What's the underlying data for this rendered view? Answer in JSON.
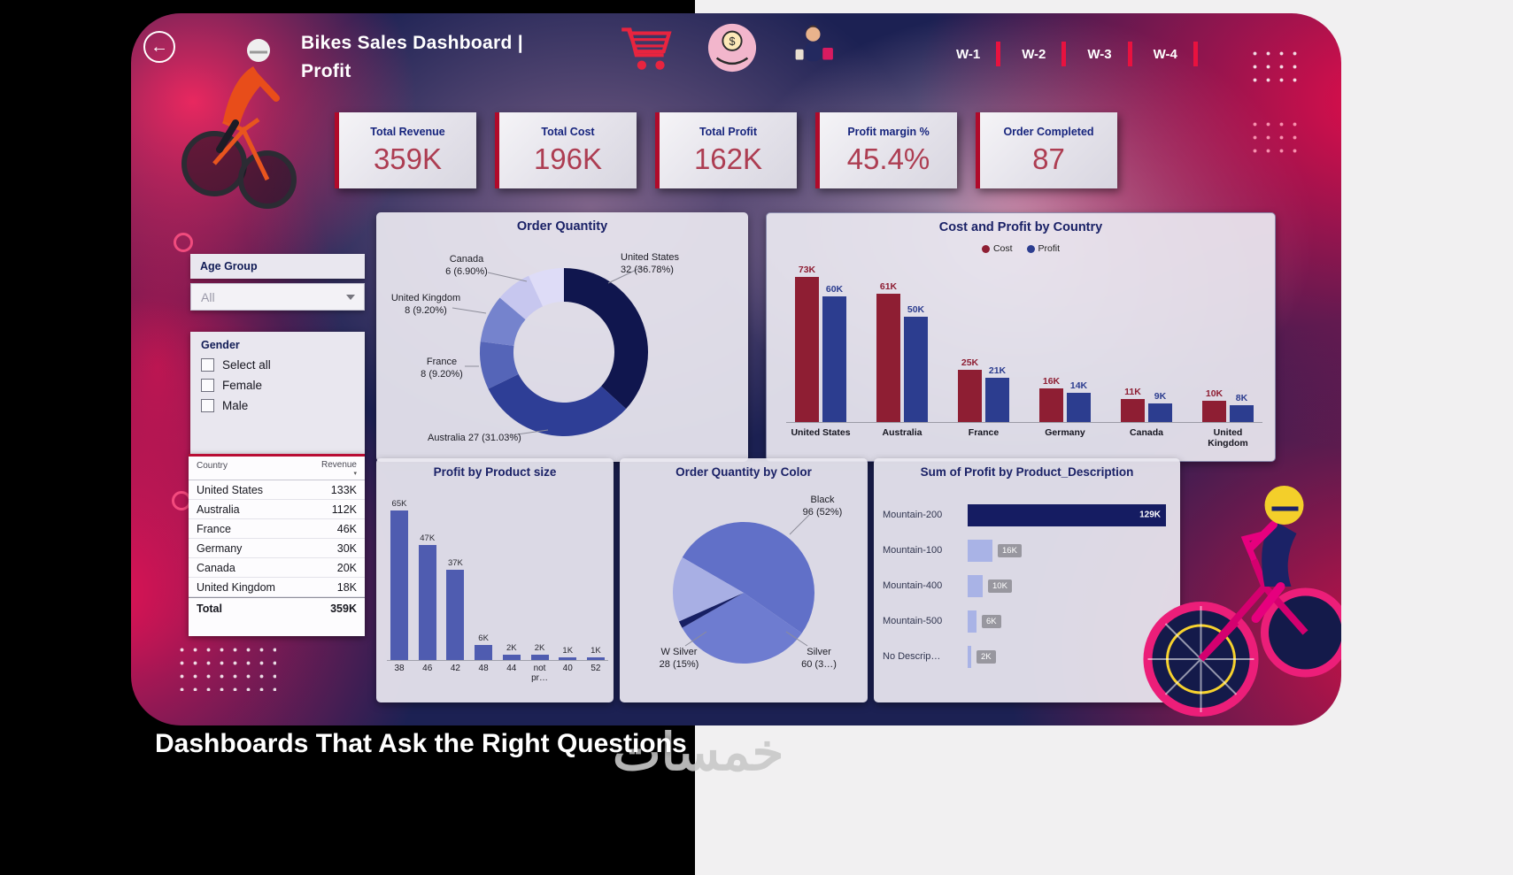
{
  "page": {
    "caption": "Dashboards That Ask the Right Questions",
    "watermark": "خمسات"
  },
  "colors": {
    "accent_red": "#e8123f",
    "navy_background": "#1c2153",
    "kpi_value": "#ad3d52",
    "cost": "#8e1e33",
    "profit": "#2c3d8f"
  },
  "header": {
    "title_line1": "Bikes Sales Dashboard |",
    "title_line2": "Profit",
    "week_tabs": [
      "W-1",
      "W-2",
      "W-3",
      "W-4"
    ],
    "icons": [
      "back-arrow",
      "cyclist",
      "shopping-cart",
      "money-hand",
      "shopper"
    ]
  },
  "kpis": [
    {
      "label": "Total Revenue",
      "value": "359K"
    },
    {
      "label": "Total Cost",
      "value": "196K"
    },
    {
      "label": "Total Profit",
      "value": "162K"
    },
    {
      "label": "Profit margin %",
      "value": "45.4%"
    },
    {
      "label": "Order Completed",
      "value": "87"
    }
  ],
  "filters": {
    "age_group_label": "Age Group",
    "age_group_value": "All",
    "gender_label": "Gender",
    "gender_options": [
      "Select all",
      "Female",
      "Male"
    ]
  },
  "revenue_table": {
    "columns": [
      "Country",
      "Revenue"
    ],
    "rows": [
      {
        "country": "United States",
        "revenue": "133K"
      },
      {
        "country": "Australia",
        "revenue": "112K"
      },
      {
        "country": "France",
        "revenue": "46K"
      },
      {
        "country": "Germany",
        "revenue": "30K"
      },
      {
        "country": "Canada",
        "revenue": "20K"
      },
      {
        "country": "United Kingdom",
        "revenue": "18K"
      }
    ],
    "total_label": "Total",
    "total_value": "359K"
  },
  "chart_data": [
    {
      "id": "order_quantity",
      "type": "pie",
      "variant": "donut",
      "title": "Order Quantity",
      "slices": [
        {
          "label": "United States",
          "value": 32,
          "display": "United States\n32 (36.78%)",
          "color": "#10164e"
        },
        {
          "label": "Australia",
          "value": 27,
          "display": "Australia 27 (31.03%)",
          "color": "#2e3e96"
        },
        {
          "label": "France",
          "value": 8,
          "display": "France\n8 (9.20%)",
          "color": "#5565b8"
        },
        {
          "label": "United Kingdom",
          "value": 8,
          "display": "United Kingdom\n8 (9.20%)",
          "color": "#7583cd"
        },
        {
          "label": "Canada",
          "value": 6,
          "display": "Canada\n6 (6.90%)",
          "color": "#c7c7ef"
        },
        {
          "label": "",
          "value": 6,
          "display": "",
          "color": "#dedcf7"
        }
      ]
    },
    {
      "id": "cost_and_profit_by_country",
      "type": "bar",
      "title": "Cost and Profit by Country",
      "categories": [
        "United States",
        "Australia",
        "France",
        "Germany",
        "Canada",
        "United Kingdom"
      ],
      "series": [
        {
          "name": "Cost",
          "color": "#8e1e33",
          "values_k": [
            73,
            61,
            25,
            16,
            11,
            10
          ],
          "labels": [
            "73K",
            "61K",
            "25K",
            "16K",
            "11K",
            "10K"
          ]
        },
        {
          "name": "Profit",
          "color": "#2c3d8f",
          "values_k": [
            60,
            50,
            21,
            14,
            9,
            8
          ],
          "labels": [
            "60K",
            "50K",
            "21K",
            "14K",
            "9K",
            "8K"
          ]
        }
      ],
      "ylim_k": [
        0,
        75
      ],
      "legend_position": "top"
    },
    {
      "id": "profit_by_product_size",
      "type": "bar",
      "title": "Profit by Product size",
      "categories": [
        "38",
        "46",
        "42",
        "48",
        "44",
        "not pr…",
        "40",
        "52"
      ],
      "values_k": [
        65,
        47,
        37,
        6,
        2,
        2,
        1,
        1
      ],
      "labels": [
        "65K",
        "47K",
        "37K",
        "6K",
        "2K",
        "2K",
        "1K",
        "1K"
      ],
      "color": "#4f5cb0",
      "ylim_k": [
        0,
        66
      ]
    },
    {
      "id": "order_quantity_by_color",
      "type": "pie",
      "title": "Order Quantity by Color",
      "start_angle": 300,
      "slices": [
        {
          "label": "Black",
          "value": 96,
          "display": "Black\n96 (52%)",
          "color": "#6170c8"
        },
        {
          "label": "Silver",
          "value": 60,
          "display": "Silver\n60 (3…)",
          "color": "#6e7cd0"
        },
        {
          "label": "",
          "value": 3,
          "display": "",
          "color": "#171f63"
        },
        {
          "label": "W Silver",
          "value": 28,
          "display": "W Silver\n28 (15%)",
          "color": "#a8afe4"
        }
      ]
    },
    {
      "id": "sum_of_profit_by_product_description",
      "type": "bar",
      "orientation": "horizontal",
      "title": "Sum of Profit by Product_Description",
      "categories": [
        "Mountain-200",
        "Mountain-100",
        "Mountain-400",
        "Mountain-500",
        "No Descrip…"
      ],
      "values_k": [
        129,
        16,
        10,
        6,
        2
      ],
      "labels": [
        "129K",
        "16K",
        "10K",
        "6K",
        "2K"
      ],
      "bar_colors": [
        "#151c62",
        "#a9b3e6",
        "#a9b3e6",
        "#a9b3e6",
        "#a9b3e6"
      ],
      "xlim_k": [
        0,
        130
      ]
    }
  ]
}
